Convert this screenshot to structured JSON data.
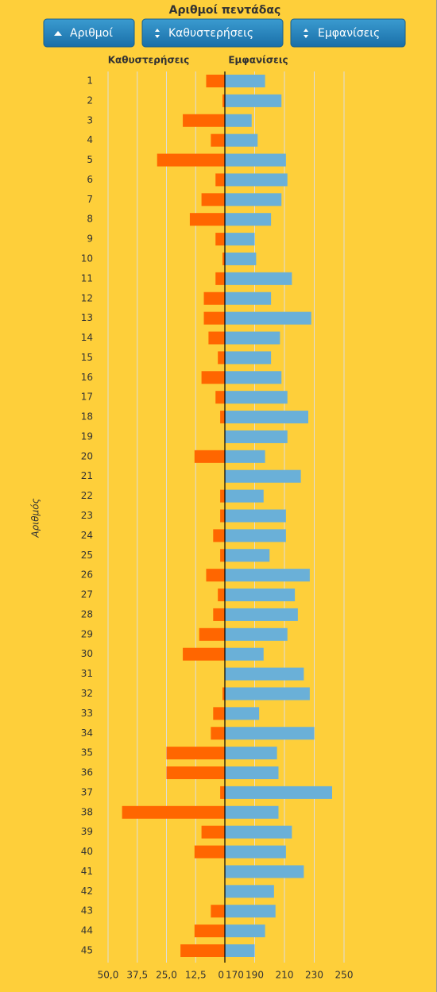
{
  "chart_data": {
    "type": "butterfly",
    "title": "Αριθμοί πεντάδας",
    "buttons": [
      "Αριθμοί",
      "Καθυστερήσεις",
      "Εμφανίσεις"
    ],
    "ylabel": "Αριθμός",
    "categories": [
      "1",
      "2",
      "3",
      "4",
      "5",
      "6",
      "7",
      "8",
      "9",
      "10",
      "11",
      "12",
      "13",
      "14",
      "15",
      "16",
      "17",
      "18",
      "19",
      "20",
      "21",
      "22",
      "23",
      "24",
      "25",
      "26",
      "27",
      "28",
      "29",
      "30",
      "31",
      "32",
      "33",
      "34",
      "35",
      "36",
      "37",
      "38",
      "39",
      "40",
      "41",
      "42",
      "43",
      "44",
      "45"
    ],
    "series": [
      {
        "name": "Καθυστερήσεις",
        "color": "#ff6600",
        "axis": "x",
        "values": [
          8,
          1,
          18,
          6,
          29,
          4,
          10,
          15,
          4,
          1,
          4,
          9,
          9,
          7,
          3,
          10,
          4,
          2,
          0,
          13,
          0,
          2,
          2,
          5,
          2,
          8,
          3,
          5,
          11,
          18,
          0,
          1,
          5,
          6,
          25,
          25,
          2,
          44,
          10,
          13,
          0,
          0,
          6,
          13,
          19
        ]
      },
      {
        "name": "Εμφανίσεις",
        "color": "#6ab0d8",
        "axis": "x2",
        "values": [
          197,
          208,
          188,
          192,
          211,
          212,
          208,
          201,
          190,
          191,
          215,
          201,
          228,
          207,
          201,
          208,
          212,
          226,
          212,
          197,
          221,
          196,
          211,
          211,
          200,
          227,
          217,
          219,
          212,
          196,
          223,
          227,
          193,
          230,
          205,
          206,
          242,
          206,
          215,
          211,
          223,
          203,
          204,
          197,
          190
        ]
      }
    ],
    "xlim": [
      50,
      0
    ],
    "xticks": [
      {
        "value": 50,
        "label": "50,0"
      },
      {
        "value": 37.5,
        "label": "37,5"
      },
      {
        "value": 25,
        "label": "25,0"
      },
      {
        "value": 12.5,
        "label": "12,5"
      },
      0
    ],
    "x2lim": [
      170,
      250
    ],
    "x2ticks": [
      170,
      190,
      210,
      230,
      250
    ],
    "grid": true
  }
}
